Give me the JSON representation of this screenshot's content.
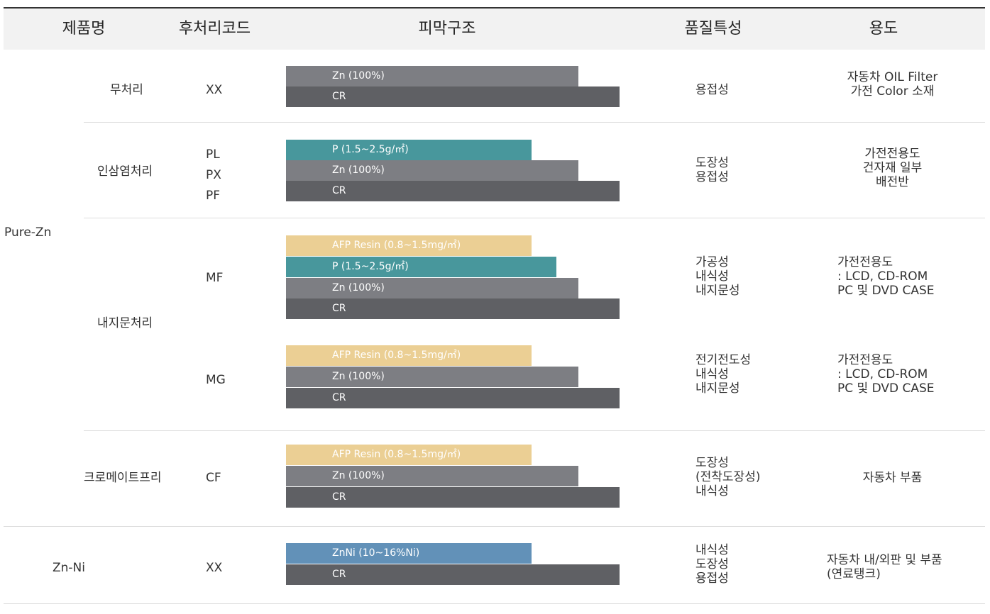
{
  "header": {
    "product_name": "제품명",
    "post_code": "후처리코드",
    "film_structure": "피막구조",
    "quality": "품질특성",
    "usage": "용도"
  },
  "groups": {
    "pure_zn": "Pure-Zn",
    "zn_ni": "Zn-Ni"
  },
  "rows": [
    {
      "treatment": "무처리",
      "code": "XX",
      "layers": [
        "Zn (100%)",
        "CR"
      ],
      "quality": "용접성",
      "usage": "자동차 OIL Filter\n가전 Color 소재"
    },
    {
      "treatment": "인삼염처리",
      "code": "PL\nPX\nPF",
      "layers": [
        "P (1.5~2.5g/㎡)",
        "Zn (100%)",
        "CR"
      ],
      "quality": "도장성\n용접성",
      "usage": "가전전용도\n건자재 일부\n배전반"
    },
    {
      "treatment": "내지문처리",
      "code": "MF",
      "layers": [
        "AFP Resin (0.8~1.5mg/㎡)",
        "P (1.5~2.5g/㎡)",
        "Zn (100%)",
        "CR"
      ],
      "quality": "가공성\n내식성\n내지문성",
      "usage": "가전전용도\n: LCD, CD-ROM\n  PC 및 DVD CASE"
    },
    {
      "code": "MG",
      "layers": [
        "AFP Resin (0.8~1.5mg/㎡)",
        "Zn (100%)",
        "CR"
      ],
      "quality": "전기전도성\n내식성\n내지문성",
      "usage": "가전전용도\n: LCD, CD-ROM\n  PC 및 DVD CASE"
    },
    {
      "treatment": "크로메이트프리",
      "code": "CF",
      "layers": [
        "AFP Resin (0.8~1.5mg/㎡)",
        "Zn (100%)",
        "CR"
      ],
      "quality": "도장성\n(전착도장성)\n내식성",
      "usage": "자동차 부품"
    },
    {
      "code": "XX",
      "layers": [
        "ZnNi (10~16%Ni)",
        "CR"
      ],
      "quality": "내식성\n도장성\n용접성",
      "usage": "자동차 내/외판 및 부품\n(연료탱크)"
    }
  ],
  "colors": {
    "cr": "#5f6064",
    "zn": "#7d7e83",
    "phosphate": "#48979c",
    "afp": "#ebcf94",
    "znni": "#6291b8"
  }
}
